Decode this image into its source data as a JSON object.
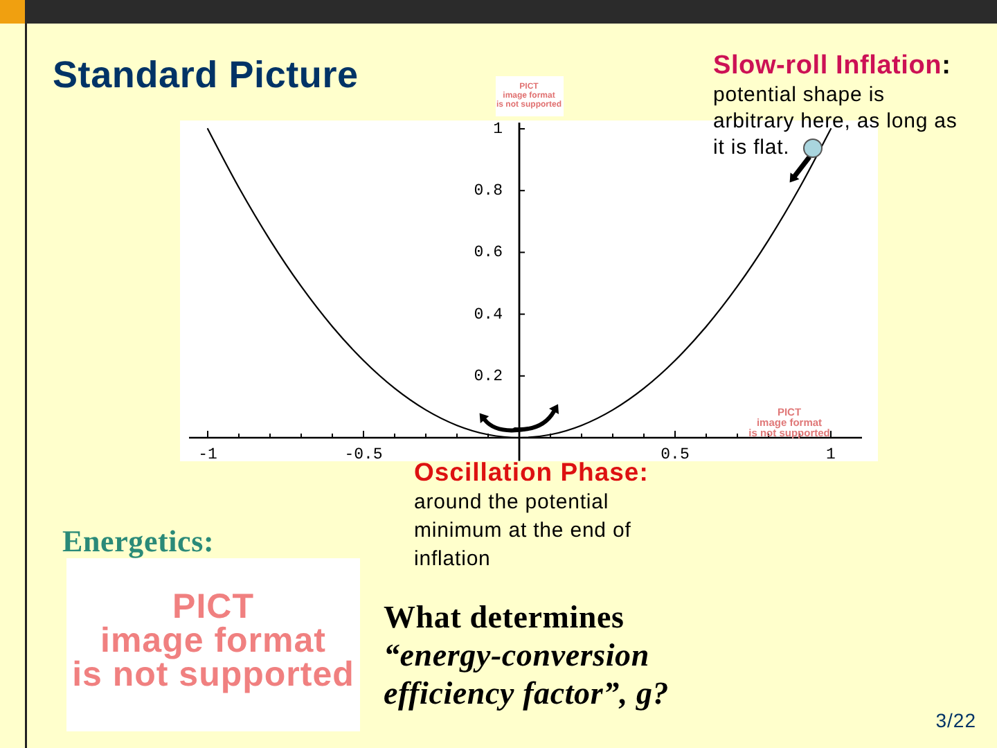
{
  "chart_data": {
    "type": "line",
    "title": "Standard Picture",
    "x": [
      -1,
      -0.9,
      -0.8,
      -0.7,
      -0.6,
      -0.5,
      -0.4,
      -0.3,
      -0.2,
      -0.1,
      0,
      0.1,
      0.2,
      0.3,
      0.4,
      0.5,
      0.6,
      0.7,
      0.8,
      0.9,
      1
    ],
    "values": [
      1,
      0.81,
      0.64,
      0.49,
      0.36,
      0.25,
      0.16,
      0.09,
      0.04,
      0.01,
      0,
      0.01,
      0.04,
      0.09,
      0.16,
      0.25,
      0.36,
      0.49,
      0.64,
      0.81,
      1
    ],
    "color": "#000000",
    "xlim": [
      -1.06,
      1.1
    ],
    "ylim": [
      -0.075,
      1.02
    ],
    "xticks": [
      -1,
      {
        "value": -0.9,
        "label": null
      },
      {
        "value": -0.8,
        "label": null
      },
      {
        "value": -0.7,
        "label": null
      },
      {
        "value": -0.6,
        "label": null
      },
      -0.5,
      {
        "value": -0.4,
        "label": null
      },
      {
        "value": -0.3,
        "label": null
      },
      {
        "value": -0.2,
        "label": null
      },
      {
        "value": -0.1,
        "label": null
      },
      {
        "value": 0.1,
        "label": null
      },
      {
        "value": 0.2,
        "label": null
      },
      {
        "value": 0.3,
        "label": null
      },
      {
        "value": 0.4,
        "label": null
      },
      0.5,
      {
        "value": 0.6,
        "label": null
      },
      {
        "value": 0.7,
        "label": null
      },
      {
        "value": 0.8,
        "label": null
      },
      {
        "value": 0.9,
        "label": null
      },
      1
    ],
    "yticks": [
      0.2,
      0.4,
      0.6,
      0.8,
      1
    ],
    "annotations": [
      "Slow-roll Inflation:",
      "potential shape is\narbitrary here, as long as\nit is flat.",
      "Oscillation Phase:",
      "around the potential\nminimum at the end of\ninflation",
      "Energetics:",
      "What determines\n“energy-conversion\nefficiency factor”, g?",
      "3/22",
      "PICT\nimage format\nis not supported",
      "PICT\nimage format\nis not supported",
      "PICT\nimage format\nis not supported"
    ]
  }
}
